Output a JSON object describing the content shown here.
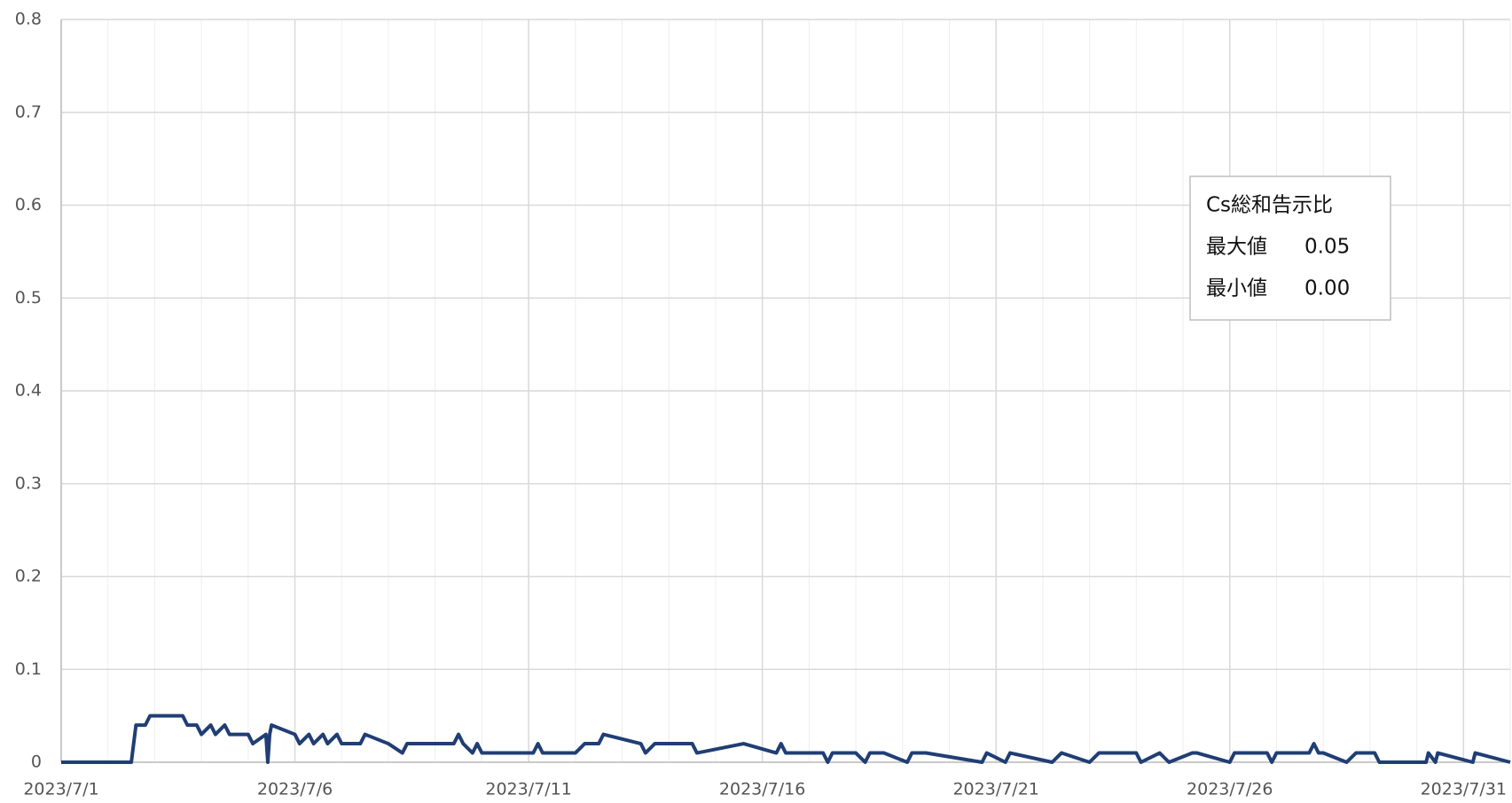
{
  "chart_data": {
    "type": "line",
    "x": [
      1,
      2.5,
      2.6,
      2.8,
      2.9,
      3.6,
      3.7,
      3.9,
      4.0,
      4.2,
      4.3,
      4.5,
      4.6,
      5.0,
      5.1,
      5.38,
      5.42,
      5.46,
      5.5,
      6.0,
      6.1,
      6.3,
      6.4,
      6.6,
      6.7,
      6.9,
      7.0,
      7.4,
      7.5,
      8.0,
      8.3,
      8.4,
      9.4,
      9.5,
      9.6,
      9.8,
      9.9,
      10.0,
      11.1,
      11.2,
      11.3,
      12.0,
      12.2,
      12.5,
      12.6,
      13.4,
      13.5,
      13.7,
      14.5,
      14.6,
      15.6,
      16.3,
      16.4,
      16.5,
      17.3,
      17.4,
      17.5,
      18.0,
      18.2,
      18.3,
      18.6,
      19.1,
      19.2,
      19.5,
      20.7,
      20.8,
      21.2,
      21.3,
      22.2,
      22.4,
      23.0,
      23.2,
      24.0,
      24.1,
      24.5,
      24.7,
      25.2,
      25.3,
      26.0,
      26.1,
      26.8,
      26.9,
      27.0,
      27.7,
      27.8,
      27.9,
      28.0,
      28.5,
      28.7,
      29.1,
      29.2,
      30.2,
      30.25,
      30.4,
      30.45,
      31.2,
      31.25,
      32
    ],
    "series": [
      {
        "color": "#203e74",
        "values": [
          0,
          0,
          0.04,
          0.04,
          0.05,
          0.05,
          0.04,
          0.04,
          0.03,
          0.04,
          0.03,
          0.04,
          0.03,
          0.03,
          0.02,
          0.03,
          0,
          0.03,
          0.04,
          0.03,
          0.02,
          0.03,
          0.02,
          0.03,
          0.02,
          0.03,
          0.02,
          0.02,
          0.03,
          0.02,
          0.01,
          0.02,
          0.02,
          0.03,
          0.02,
          0.01,
          0.02,
          0.01,
          0.01,
          0.02,
          0.01,
          0.01,
          0.02,
          0.02,
          0.03,
          0.02,
          0.01,
          0.02,
          0.02,
          0.01,
          0.02,
          0.01,
          0.02,
          0.01,
          0.01,
          0,
          0.01,
          0.01,
          0,
          0.01,
          0.01,
          0,
          0.01,
          0.01,
          0,
          0.01,
          0,
          0.01,
          0,
          0.01,
          0,
          0.01,
          0.01,
          0,
          0.01,
          0,
          0.01,
          0.01,
          0,
          0.01,
          0.01,
          0,
          0.01,
          0.01,
          0.02,
          0.01,
          0.01,
          0,
          0.01,
          0.01,
          0,
          0,
          0.01,
          0,
          0.01,
          0,
          0.01,
          0
        ]
      }
    ],
    "xlim": [
      1,
      32
    ],
    "xticks": [
      {
        "value": 1,
        "label": "2023/7/1"
      },
      {
        "value": 6,
        "label": "2023/7/6"
      },
      {
        "value": 11,
        "label": "2023/7/11"
      },
      {
        "value": 16,
        "label": "2023/7/16"
      },
      {
        "value": 21,
        "label": "2023/7/21"
      },
      {
        "value": 26,
        "label": "2023/7/26"
      },
      {
        "value": 31,
        "label": "2023/7/31"
      }
    ],
    "x_minor_grid_step": 1,
    "ylim": [
      0,
      0.8
    ],
    "yticks": [
      0,
      0.1,
      0.2,
      0.3,
      0.4,
      0.5,
      0.6,
      0.7,
      0.8
    ],
    "grid": true,
    "annotation": {
      "title": "Cs総和告示比",
      "rows": [
        [
          "最大値",
          "0.05"
        ],
        [
          "最小値",
          "0.00"
        ]
      ]
    }
  }
}
